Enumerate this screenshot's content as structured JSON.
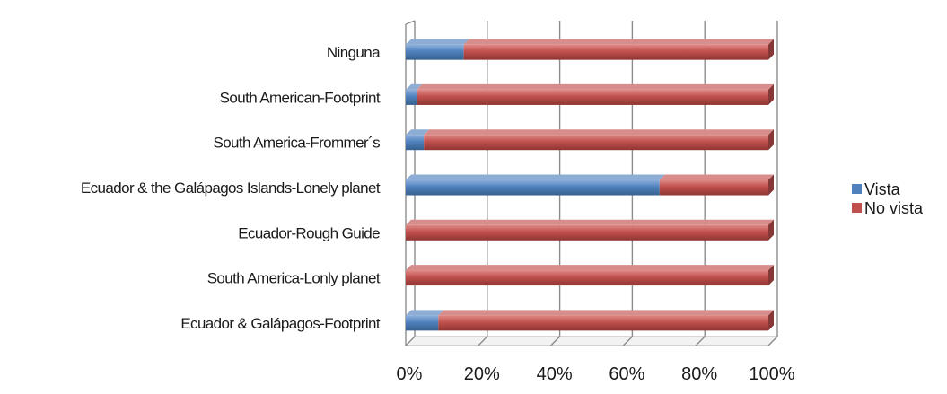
{
  "chart_data": {
    "type": "bar",
    "orientation": "horizontal",
    "stacked": "percent",
    "three_d": true,
    "categories": [
      "Ninguna",
      "South American-Footprint",
      "South America-Frommer´s",
      "Ecuador & the Galápagos Islands-Lonely planet",
      "Ecuador-Rough Guide",
      "South America-Lonly planet",
      "Ecuador & Galápagos-Footprint"
    ],
    "series": [
      {
        "name": "Vista",
        "color": "#4f81bd",
        "values": [
          16,
          3,
          5,
          70,
          0,
          0,
          9
        ]
      },
      {
        "name": "No vista",
        "color": "#c0504d",
        "values": [
          84,
          97,
          95,
          30,
          100,
          100,
          91
        ]
      }
    ],
    "x_ticks": [
      "0%",
      "20%",
      "40%",
      "60%",
      "80%",
      "100%"
    ],
    "xlim": [
      0,
      100
    ],
    "grid": true,
    "legend_position": "right"
  }
}
